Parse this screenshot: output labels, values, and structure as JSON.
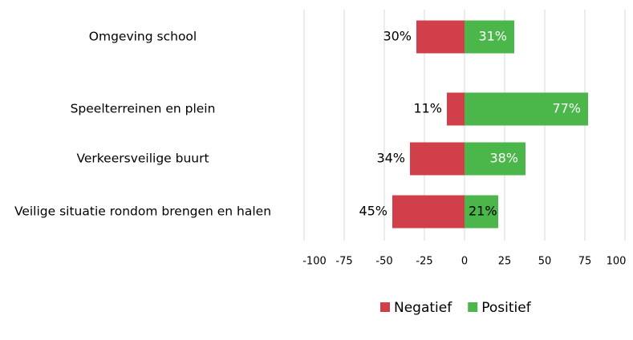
{
  "chart_data": {
    "type": "diverging-bar",
    "categories": [
      "Omgeving school",
      "Speelterreinen en plein",
      "Verkeersveilige buurt",
      "Veilige situatie rondom brengen en halen"
    ],
    "series": [
      {
        "name": "Negatief",
        "color": "#d13f4b",
        "values": [
          -30,
          -11,
          -34,
          -45
        ],
        "value_labels": [
          "30%",
          "11%",
          "34%",
          "45%"
        ]
      },
      {
        "name": "Positief",
        "color": "#4bb64a",
        "values": [
          31,
          77,
          38,
          21
        ],
        "value_labels": [
          "31%",
          "77%",
          "38%",
          "21%"
        ]
      }
    ],
    "xlim": [
      -100,
      100
    ],
    "xticks": [
      -100,
      -75,
      -50,
      -25,
      0,
      25,
      50,
      75,
      100
    ],
    "grid": true,
    "legend": "bottom"
  }
}
